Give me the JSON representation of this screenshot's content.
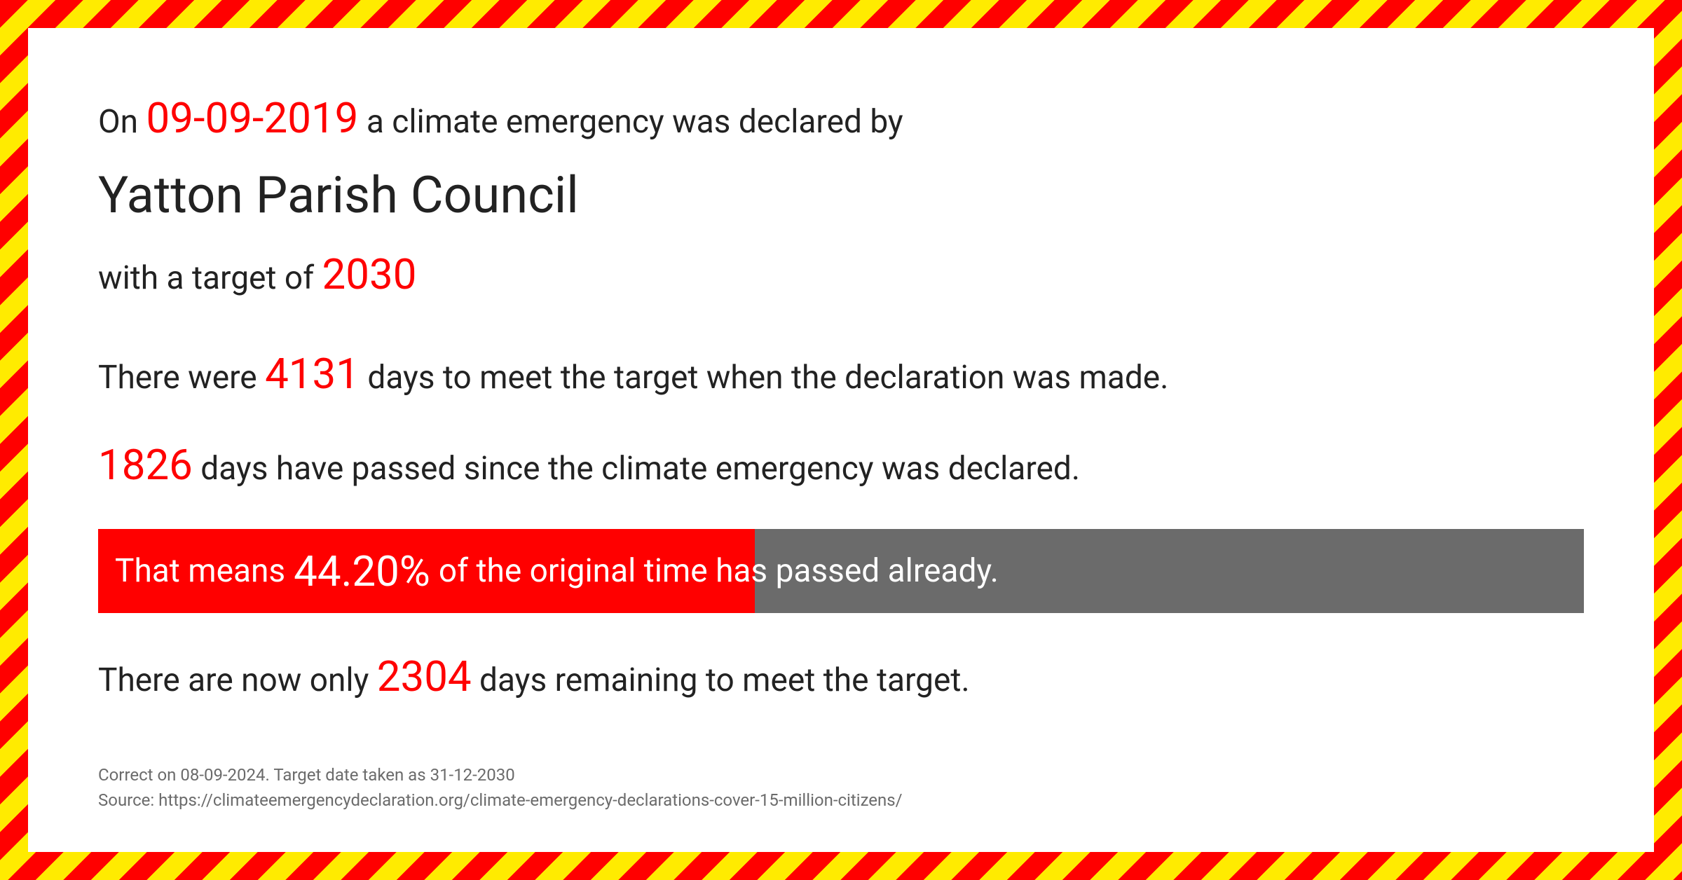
{
  "declaration": {
    "prefix": "On ",
    "date": "09-09-2019",
    "suffix": " a climate emergency was declared by"
  },
  "council_name": "Yatton Parish Council",
  "target": {
    "prefix": "with a target of  ",
    "year": "2030"
  },
  "days_total": {
    "prefix": "There were ",
    "value": "4131",
    "suffix": "  days to meet the target when the declaration was made."
  },
  "days_passed": {
    "value": "1826",
    "suffix": " days have passed since the climate emergency was declared."
  },
  "progress": {
    "prefix": "That means ",
    "percent_text": "44.20%",
    "percent_value": 44.2,
    "suffix": " of the original time has passed already."
  },
  "days_remaining": {
    "prefix": "There are now only ",
    "value": "2304",
    "suffix": " days remaining to meet the target."
  },
  "footer": {
    "line1": "Correct on 08-09-2024. Target date taken as 31-12-2030",
    "line2": "Source: https://climateemergencydeclaration.org/climate-emergency-declarations-cover-15-million-citizens/"
  },
  "colors": {
    "accent": "#ff0000",
    "bar_bg": "#6b6b6b",
    "text": "#222222",
    "footer_text": "#6b6b6b",
    "stripe_a": "#ff0000",
    "stripe_b": "#ffeb00",
    "background": "#ffffff"
  }
}
